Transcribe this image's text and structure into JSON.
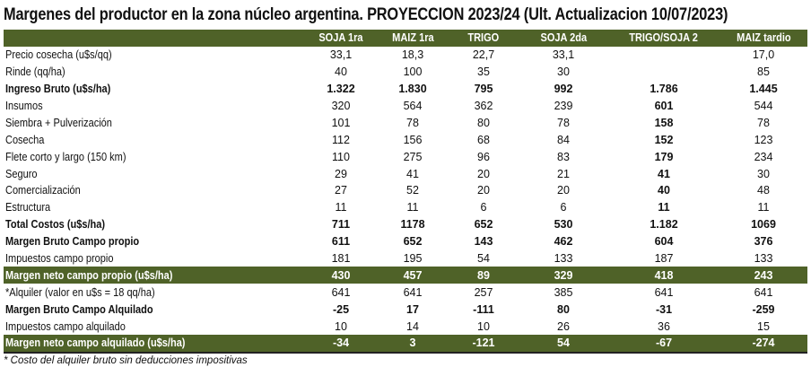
{
  "title": "Margenes del productor en la zona núcleo argentina. PROYECCION 2023/24 (Ult. Actualizacion 10/07/2023)",
  "columns": [
    "",
    "SOJA 1ra",
    "MAIZ 1ra",
    "TRIGO",
    "SOJA 2da",
    "TRIGO/SOJA 2",
    "MAIZ tardio"
  ],
  "rows": [
    {
      "label": "Precio cosecha (u$s/qq)",
      "values": [
        "33,1",
        "18,3",
        "22,7",
        "33,1",
        "",
        "17,0"
      ],
      "style": ""
    },
    {
      "label": "Rinde (qq/ha)",
      "values": [
        "40",
        "100",
        "35",
        "30",
        "",
        "85"
      ],
      "style": ""
    },
    {
      "label": "Ingreso Bruto (u$s/ha)",
      "values": [
        "1.322",
        "1.830",
        "795",
        "992",
        "1.786",
        "1.445"
      ],
      "style": "bold"
    },
    {
      "label": "Insumos",
      "values": [
        "320",
        "564",
        "362",
        "239",
        "601",
        "544"
      ],
      "style": "indent"
    },
    {
      "label": "Siembra + Pulverización",
      "values": [
        "101",
        "78",
        "80",
        "78",
        "158",
        "78"
      ],
      "style": "indent"
    },
    {
      "label": "Cosecha",
      "values": [
        "112",
        "156",
        "68",
        "84",
        "152",
        "123"
      ],
      "style": "indent"
    },
    {
      "label": "Flete corto y largo (150 km)",
      "values": [
        "110",
        "275",
        "96",
        "83",
        "179",
        "234"
      ],
      "style": "indent"
    },
    {
      "label": "Seguro",
      "values": [
        "29",
        "41",
        "20",
        "21",
        "41",
        "30"
      ],
      "style": "indent"
    },
    {
      "label": "Comercialización",
      "values": [
        "27",
        "52",
        "20",
        "20",
        "40",
        "48"
      ],
      "style": "indent"
    },
    {
      "label": "Estructura",
      "values": [
        "11",
        "11",
        "6",
        "6",
        "11",
        "11"
      ],
      "style": "indent"
    },
    {
      "label": "Total Costos (u$s/ha)",
      "values": [
        "711",
        "1178",
        "652",
        "530",
        "1.182",
        "1069"
      ],
      "style": "bold"
    },
    {
      "label": "Margen Bruto Campo propio",
      "values": [
        "611",
        "652",
        "143",
        "462",
        "604",
        "376"
      ],
      "style": "bold"
    },
    {
      "label": "Impuestos  campo propio",
      "values": [
        "181",
        "195",
        "54",
        "133",
        "187",
        "133"
      ],
      "style": "indent"
    },
    {
      "label": "Margen neto campo propio (u$s/ha)",
      "values": [
        "430",
        "457",
        "89",
        "329",
        "418",
        "243"
      ],
      "style": "green"
    },
    {
      "label": "*Alquiler (valor en u$s = 18 qq/ha)",
      "values": [
        "641",
        "641",
        "257",
        "385",
        "641",
        "641"
      ],
      "style": ""
    },
    {
      "label": "Margen Bruto Campo Alquilado",
      "values": [
        "-25",
        "17",
        "-111",
        "80",
        "-31",
        "-259"
      ],
      "style": "bold"
    },
    {
      "label": "Impuestos campo alquilado",
      "values": [
        "10",
        "14",
        "10",
        "26",
        "36",
        "15"
      ],
      "style": "indent"
    },
    {
      "label": "Margen neto campo alquilado (u$s/ha)",
      "values": [
        "-34",
        "3",
        "-121",
        "54",
        "-67",
        "-274"
      ],
      "style": "green lastline"
    }
  ],
  "footnote": "* Costo del alquiler bruto sin deducciones impositivas",
  "colors": {
    "header_green": "#4f6228"
  }
}
